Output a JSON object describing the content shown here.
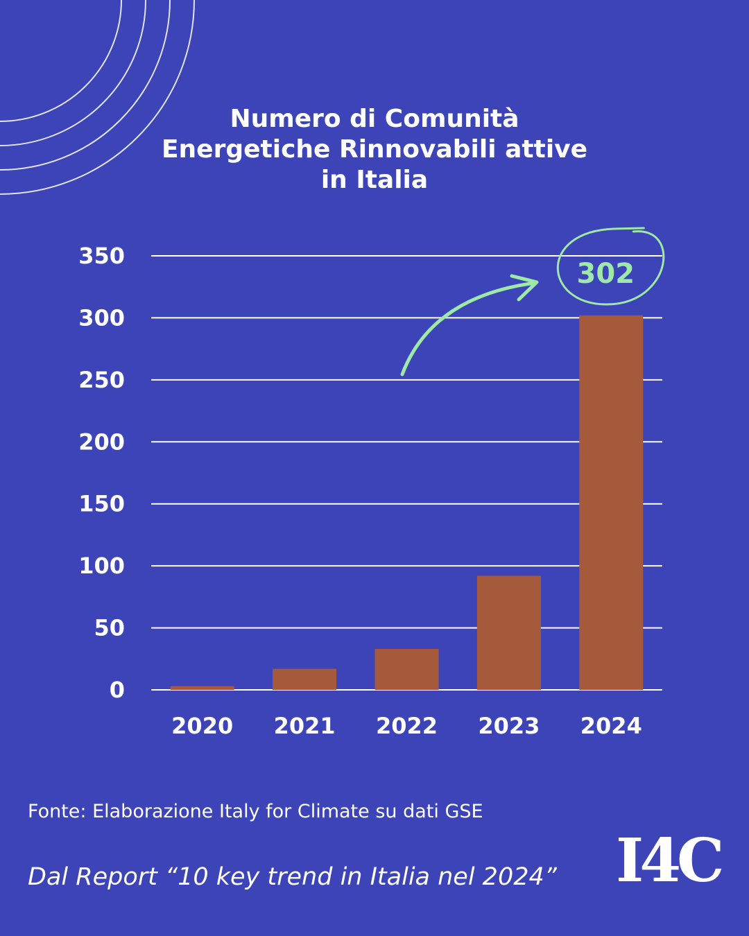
{
  "colors": {
    "background": "#3c44b8",
    "bar": "#a55a3c",
    "grid": "#ffffff",
    "text": "#ffffff",
    "highlight": "#9fe9a8"
  },
  "title_lines": [
    "Numero di Comunità",
    "Energetiche Rinnovabili attive",
    "in Italia"
  ],
  "chart_data": {
    "type": "bar",
    "title": "Numero di Comunità Energetiche Rinnovabili attive in Italia",
    "categories": [
      "2020",
      "2021",
      "2022",
      "2023",
      "2024"
    ],
    "values": [
      3,
      17,
      33,
      92,
      302
    ],
    "ylim": [
      0,
      350
    ],
    "yticks": [
      0,
      50,
      100,
      150,
      200,
      250,
      300,
      350
    ],
    "grid": true,
    "annotation": {
      "label": "302",
      "category": "2024"
    }
  },
  "footer": {
    "source": "Fonte: Elaborazione Italy for Climate su dati GSE",
    "report": "Dal Report “10 key trend in Italia nel 2024”",
    "logo": "I4C"
  }
}
